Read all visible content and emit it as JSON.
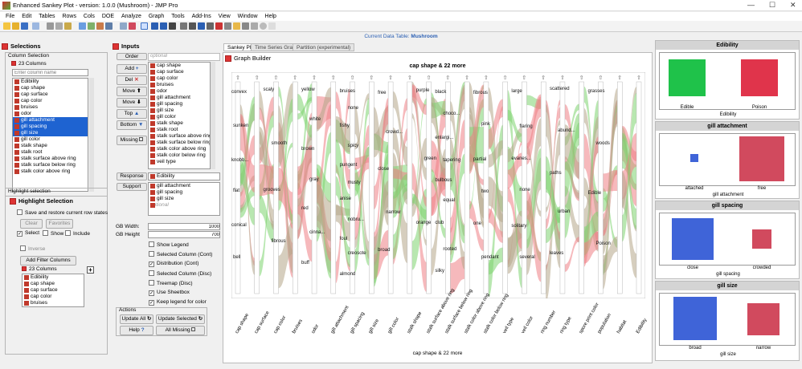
{
  "window": {
    "title": "Enhanced Sankey Plot - version: 1.0.0 (Mushroom) - JMP Pro"
  },
  "menu": [
    "File",
    "Edit",
    "Tables",
    "Rows",
    "Cols",
    "DOE",
    "Analyze",
    "Graph",
    "Tools",
    "Add-Ins",
    "View",
    "Window",
    "Help"
  ],
  "table_bar": {
    "label": "Current Data Table:",
    "name": "Mushroom"
  },
  "selections": {
    "title": "Selections",
    "column_selection": "Column Selection",
    "count": "23 Columns",
    "placeholder": "Enter column name",
    "columns": [
      "Edibility",
      "cap shape",
      "cap surface",
      "cap color",
      "bruises",
      "odor",
      "gill attachment",
      "gill spacing",
      "gill size",
      "gill color",
      "stalk shape",
      "stalk root",
      "stalk surface above ring",
      "stalk surface below ring",
      "stalk color above ring"
    ]
  },
  "highlight": {
    "section": "Highlight selection",
    "title": "Highlight Selection",
    "save_restore": "Save and restore current row states",
    "clear": "Clear",
    "favorites": "Favorites",
    "select": "Select",
    "show": "Show",
    "include": "Include",
    "inverse": "Inverse",
    "add_filter": "Add Filter Columns",
    "count": "23 Columns",
    "columns": [
      "Edibility",
      "cap shape",
      "cap surface",
      "cap color",
      "bruises"
    ]
  },
  "inputs": {
    "title": "Inputs",
    "order": "Order",
    "optional": "optional",
    "add": "Add",
    "del": "Del",
    "move_up": "Move",
    "move_down": "Move",
    "top": "Top",
    "bottom": "Bottom",
    "missing": "Missing",
    "order_list": [
      "cap shape",
      "cap surface",
      "cap color",
      "bruises",
      "odor",
      "gill attachment",
      "gill spacing",
      "gill size",
      "gill color",
      "stalk shape",
      "stalk root",
      "stalk surface above ring",
      "stalk surface below ring",
      "stalk color above ring",
      "stalk color below ring",
      "veil type"
    ],
    "response": "Response",
    "response_value": "Edibility",
    "support": "Support",
    "support_list": [
      "gill attachment",
      "gill spacing",
      "gill size",
      "optional"
    ],
    "gb_width_label": "GB Width:",
    "gb_width": "1000",
    "gb_height_label": "GB Height",
    "gb_height": "700",
    "options": [
      {
        "label": "Show Legend",
        "checked": false
      },
      {
        "label": "Selected Column (Cont)",
        "checked": false
      },
      {
        "label": "Distribution (Cont)",
        "checked": true
      },
      {
        "label": "Selected Column (Disc)",
        "checked": false
      },
      {
        "label": "Treemap (Disc)",
        "checked": false
      },
      {
        "label": "Use Sheetbox",
        "checked": true
      },
      {
        "label": "Keep legend for color",
        "checked": true
      }
    ],
    "actions": "Actions",
    "update_all": "Update All",
    "update_selected": "Update Selected",
    "help": "Help",
    "all_missing": "All Missing"
  },
  "tabs": [
    "Sankey Plot",
    "Time Series Graph",
    "Partition (experimental)"
  ],
  "graph": {
    "builder": "Graph Builder",
    "title": "cap shape & 22 more",
    "xlabel": "cap shape & 22 more",
    "axes": [
      "cap shape",
      "cap surface",
      "cap color",
      "bruises",
      "odor",
      "gill attachment",
      "gill spacing",
      "gill size",
      "gill color",
      "stalk shape",
      "stalk surface above ring",
      "stalk surface below ring",
      "stalk color above ring",
      "stalk color below ring",
      "veil type",
      "veil color",
      "ring number",
      "ring type",
      "spore print color",
      "population",
      "habitat",
      "Edibility"
    ],
    "node_labels": [
      {
        "t": "convex"
      },
      {
        "t": "sunken"
      },
      {
        "t": "knobb..."
      },
      {
        "t": "flat"
      },
      {
        "t": "conical"
      },
      {
        "t": "bell"
      },
      {
        "t": "scaly"
      },
      {
        "t": "smooth"
      },
      {
        "t": "grooves"
      },
      {
        "t": "fibrous"
      },
      {
        "t": "yellow"
      },
      {
        "t": "white"
      },
      {
        "t": "brown"
      },
      {
        "t": "gray"
      },
      {
        "t": "red"
      },
      {
        "t": "cinna..."
      },
      {
        "t": "buff"
      },
      {
        "t": "bruises"
      },
      {
        "t": "none"
      },
      {
        "t": "fishy"
      },
      {
        "t": "spicy"
      },
      {
        "t": "pungent"
      },
      {
        "t": "musty"
      },
      {
        "t": "anise"
      },
      {
        "t": "nobru..."
      },
      {
        "t": "foul"
      },
      {
        "t": "creosote"
      },
      {
        "t": "almond"
      },
      {
        "t": "free"
      },
      {
        "t": "crowd..."
      },
      {
        "t": "close"
      },
      {
        "t": "narrow"
      },
      {
        "t": "broad"
      },
      {
        "t": "purple"
      },
      {
        "t": "green"
      },
      {
        "t": "orange"
      },
      {
        "t": "black"
      },
      {
        "t": "choco..."
      },
      {
        "t": "enlargi..."
      },
      {
        "t": "tapering"
      },
      {
        "t": "bulbous"
      },
      {
        "t": "equal"
      },
      {
        "t": "club"
      },
      {
        "t": "rooted"
      },
      {
        "t": "silky"
      },
      {
        "t": "fibrous"
      },
      {
        "t": "pink"
      },
      {
        "t": "partial"
      },
      {
        "t": "two"
      },
      {
        "t": "one"
      },
      {
        "t": "pendant"
      },
      {
        "t": "large"
      },
      {
        "t": "flaring"
      },
      {
        "t": "evanes..."
      },
      {
        "t": "none"
      },
      {
        "t": "solitary"
      },
      {
        "t": "several"
      },
      {
        "t": "scattered"
      },
      {
        "t": "abund..."
      },
      {
        "t": "paths"
      },
      {
        "t": "urban"
      },
      {
        "t": "leaves"
      },
      {
        "t": "grasses"
      },
      {
        "t": "woods"
      },
      {
        "t": "Edible"
      },
      {
        "t": "Poison"
      }
    ]
  },
  "right_panels": [
    {
      "title": "Edibility",
      "items": [
        {
          "label": "Edible",
          "color": "#1fc24a"
        },
        {
          "label": "Poison",
          "color": "#e0344b"
        }
      ],
      "footer": "Edibility"
    },
    {
      "title": "gill attachment",
      "items": [
        {
          "label": "attached",
          "color": "#3f64d8"
        },
        {
          "label": "free",
          "color": "#d14a5e"
        }
      ],
      "footer": "gill attachment"
    },
    {
      "title": "gill spacing",
      "items": [
        {
          "label": "close",
          "color": "#3f64d8"
        },
        {
          "label": "crowded",
          "color": "#d14a5e"
        }
      ],
      "footer": "gill spacing"
    },
    {
      "title": "gill size",
      "items": [
        {
          "label": "broad",
          "color": "#3f64d8"
        },
        {
          "label": "narrow",
          "color": "#d14a5e"
        }
      ],
      "footer": "gill size"
    }
  ],
  "colors": {
    "edible": "#7ed36f",
    "poison": "#ef7f85",
    "mixed": "#b4a688",
    "accent": "#1e63d1"
  }
}
